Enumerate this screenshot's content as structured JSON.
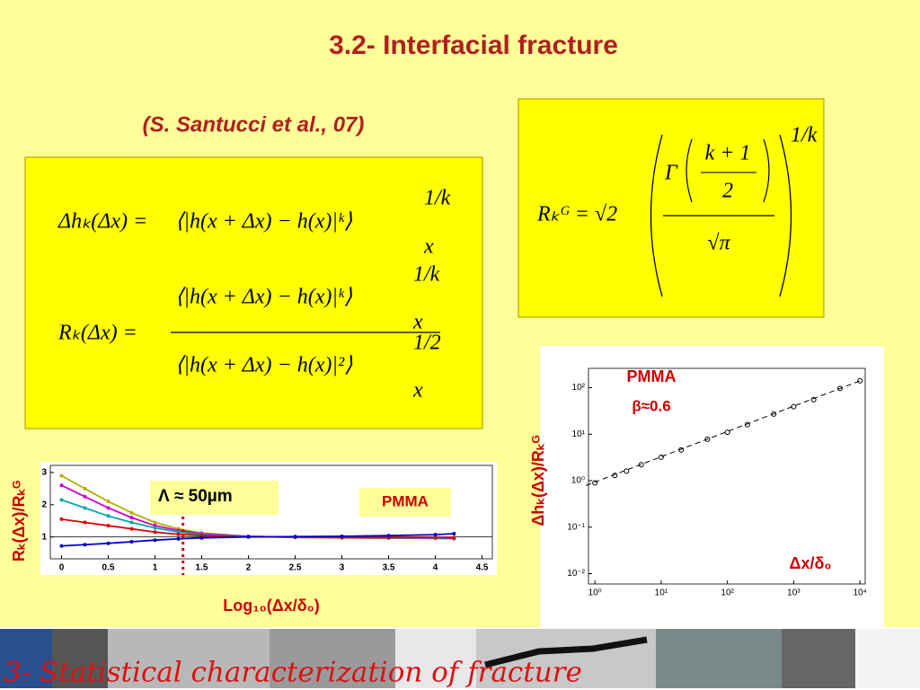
{
  "slide": {
    "title": "3.2- Interfacial fracture",
    "citation": "(S. Santucci et al., 07)",
    "formula1": {
      "lhs": "Δhₖ(Δx) =",
      "body": "⟨|h(x + Δx) − h(x)|ᵏ⟩",
      "sub": "x",
      "sup": "1/k"
    },
    "formula2": {
      "lhs": "Rₖ(Δx) =",
      "num": "⟨|h(x + Δx) − h(x)|ᵏ⟩",
      "num_sub": "x",
      "num_sup": "1/k",
      "den": "⟨|h(x + Δx) − h(x)|²⟩",
      "den_sub": "x",
      "den_sup": "1/2"
    },
    "formula3": {
      "lhs": "Rₖᴳ = √2",
      "gamma": "Γ",
      "num": "k + 1",
      "den": "2",
      "root": "√π",
      "sup": "1/k"
    },
    "footer": "3- Statistical characterization of fracture"
  },
  "chart_data": [
    {
      "type": "line",
      "ylabel": "Rₖ(Δx)/Rₖᴳ",
      "xlabel": "Log₁₀(Δx/δ₀)",
      "annotations": [
        "Λ ≈ 50µm",
        "PMMA"
      ],
      "xlim": [
        -0.12,
        4.61
      ],
      "ylim": [
        0.32,
        3.22
      ],
      "xticks": [
        0,
        0.5,
        1,
        1.5,
        2,
        2.5,
        3,
        3.5,
        4,
        4.5
      ],
      "yticks": [
        1,
        2,
        3
      ],
      "reference_line": 1,
      "marker_x": 1.3,
      "marker_color": "#cc0000",
      "x": [
        0,
        0.25,
        0.5,
        0.75,
        1,
        1.25,
        1.5,
        2,
        2.5,
        3,
        3.5,
        4,
        4.2
      ],
      "series": [
        {
          "color": "#b0b000",
          "values": [
            2.9,
            2.5,
            2.1,
            1.75,
            1.45,
            1.25,
            1.12,
            1.02,
            0.98,
            0.97,
            0.96,
            0.95,
            0.94
          ]
        },
        {
          "color": "#cc00cc",
          "values": [
            2.6,
            2.25,
            1.9,
            1.6,
            1.35,
            1.2,
            1.1,
            1.02,
            0.99,
            0.98,
            0.97,
            0.96,
            0.95
          ]
        },
        {
          "color": "#00aaaa",
          "values": [
            2.15,
            1.9,
            1.65,
            1.45,
            1.28,
            1.15,
            1.07,
            1.01,
            0.99,
            0.99,
            0.98,
            0.97,
            0.97
          ]
        },
        {
          "color": "#dd0000",
          "values": [
            1.55,
            1.45,
            1.35,
            1.25,
            1.15,
            1.08,
            1.04,
            1.0,
            1.0,
            0.99,
            0.99,
            0.99,
            0.98
          ]
        },
        {
          "color": "#0000cc",
          "values": [
            0.72,
            0.76,
            0.8,
            0.85,
            0.9,
            0.94,
            0.97,
            1.0,
            1.01,
            1.02,
            1.04,
            1.07,
            1.1
          ]
        }
      ]
    },
    {
      "type": "scatter",
      "ylabel": "Δhₖ(Δx)/Rₖᴳ",
      "xlabel": "Δx/δ₀",
      "annotations": [
        "PMMA",
        "β≈0.6"
      ],
      "log_x": true,
      "log_y": true,
      "xlim": [
        0.8,
        12000
      ],
      "ylim": [
        0.006,
        260
      ],
      "xticks": [
        {
          "value": 1,
          "label": "10⁰"
        },
        {
          "value": 10,
          "label": "10¹"
        },
        {
          "value": 100,
          "label": "10²"
        },
        {
          "value": 1000,
          "label": "10³"
        },
        {
          "value": 10000,
          "label": "10⁴"
        }
      ],
      "yticks": [
        {
          "value": 0.01,
          "label": "10⁻²"
        },
        {
          "value": 0.1,
          "label": "10⁻¹"
        },
        {
          "value": 1,
          "label": "10⁰"
        },
        {
          "value": 10,
          "label": "10¹"
        },
        {
          "value": 100,
          "label": "10²"
        }
      ],
      "color": "#000000",
      "x": [
        1,
        2,
        3,
        5,
        10,
        20,
        50,
        100,
        200,
        500,
        1000,
        2000,
        5000,
        10000
      ],
      "values": [
        0.9,
        1.3,
        1.6,
        2.2,
        3.2,
        4.6,
        7.8,
        11,
        16,
        27,
        39,
        55,
        96,
        140
      ]
    }
  ]
}
